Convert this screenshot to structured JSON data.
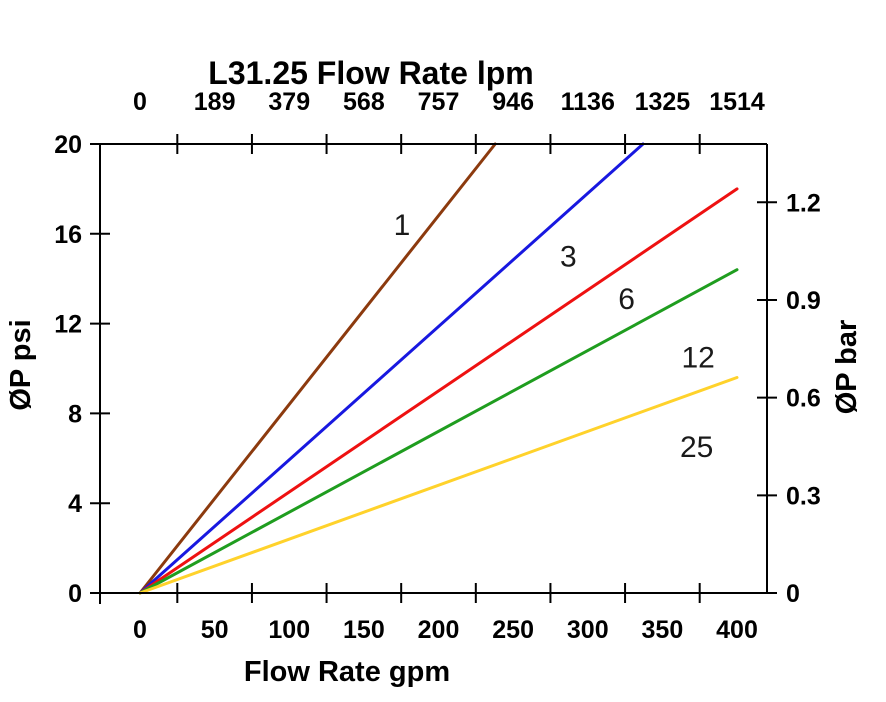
{
  "page": {
    "background": "#ffffff",
    "text_color": "#000000"
  },
  "chart_data": {
    "type": "line",
    "title": "L31.25 Flow Rate lpm",
    "xlabel": "Flow Rate gpm",
    "ylabel": "ØP psi",
    "y2label": "ØP bar",
    "x2label": "L31.25 Flow Rate lpm",
    "xlim": [
      0,
      400
    ],
    "ylim": [
      0,
      20
    ],
    "grid": false,
    "legend": "none",
    "units": {
      "x_bottom": "gpm",
      "x_top": "lpm",
      "y_left": "psi",
      "y_right": "bar"
    },
    "conversions": {
      "lpm_per_gpm": 3.785,
      "psi_per_bar": 14.504
    },
    "axes": {
      "top": {
        "title": "L31.25 Flow Rate lpm",
        "tick_labels": [
          "0",
          "189",
          "379",
          "568",
          "757",
          "946",
          "1136",
          "1325",
          "1514"
        ],
        "tick_positions_gpm": [
          0,
          50,
          100,
          150,
          200,
          250,
          300,
          350,
          400
        ],
        "minor_tick_values_gpm": [
          25,
          75,
          125,
          175,
          225,
          275,
          325,
          375
        ]
      },
      "bottom": {
        "title": "Flow Rate gpm",
        "tick_values": [
          0,
          50,
          100,
          150,
          200,
          250,
          300,
          350,
          400
        ],
        "tick_labels": [
          "0",
          "50",
          "100",
          "150",
          "200",
          "250",
          "300",
          "350",
          "400"
        ],
        "minor_tick_values_gpm": [
          25,
          75,
          125,
          175,
          225,
          275,
          325,
          375
        ]
      },
      "left": {
        "title": "ØP psi",
        "tick_values": [
          0,
          4,
          8,
          12,
          16,
          20
        ],
        "tick_labels": [
          "0",
          "4",
          "8",
          "12",
          "16",
          "20"
        ]
      },
      "right": {
        "title": "ØP bar",
        "tick_values_bar": [
          0,
          0.3,
          0.6,
          0.9,
          1.2
        ],
        "tick_labels": [
          "0",
          "0.3",
          "0.6",
          "0.9",
          "1.2"
        ]
      }
    },
    "series": [
      {
        "label": "1",
        "color": "#8c3a0e",
        "points_gpm_psi": [
          [
            0,
            0
          ],
          [
            238,
            20
          ]
        ],
        "label_pos_gpm_psi": [
          175.5,
          16.4
        ]
      },
      {
        "label": "3",
        "color": "#1818e0",
        "points_gpm_psi": [
          [
            0,
            0
          ],
          [
            337,
            20
          ]
        ],
        "label_pos_gpm_psi": [
          287,
          15.0
        ]
      },
      {
        "label": "6",
        "color": "#ee1111",
        "points_gpm_psi": [
          [
            0,
            0
          ],
          [
            400,
            18
          ]
        ],
        "label_pos_gpm_psi": [
          326,
          13.1
        ]
      },
      {
        "label": "12",
        "color": "#1f9d1f",
        "points_gpm_psi": [
          [
            0,
            0
          ],
          [
            400,
            14.4
          ]
        ],
        "label_pos_gpm_psi": [
          374,
          10.5
        ]
      },
      {
        "label": "25",
        "color": "#ffd22b",
        "points_gpm_psi": [
          [
            0,
            0
          ],
          [
            400,
            9.6
          ]
        ],
        "label_pos_gpm_psi": [
          373,
          6.5
        ]
      }
    ]
  }
}
